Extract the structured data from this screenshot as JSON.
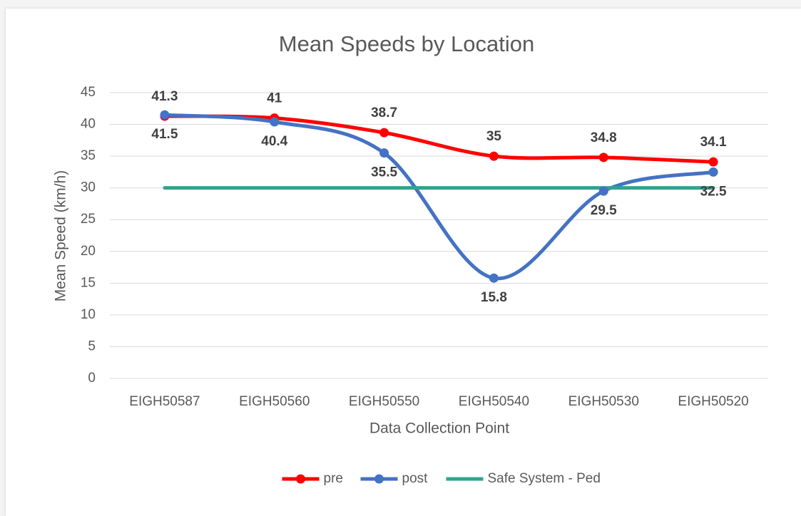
{
  "chart_data": {
    "type": "line",
    "title": "Mean Speeds by Location",
    "x_label": "Data Collection Point",
    "y_label": "Mean Speed (km/h)",
    "categories": [
      "EIGH50587",
      "EIGH50560",
      "EIGH50550",
      "EIGH50540",
      "EIGH50530",
      "EIGH50520"
    ],
    "series": [
      {
        "name": "pre",
        "color": "#ff0000",
        "values": [
          41.3,
          41,
          38.7,
          35,
          34.8,
          34.1
        ],
        "markers": true,
        "data_labels": "above"
      },
      {
        "name": "post",
        "color": "#4472c4",
        "values": [
          41.5,
          40.4,
          35.5,
          15.8,
          29.5,
          32.5
        ],
        "markers": true,
        "data_labels": "below"
      },
      {
        "name": "Safe System - Ped",
        "color": "#2ea58f",
        "values": [
          30,
          30,
          30,
          30,
          30,
          30
        ],
        "markers": false
      }
    ],
    "ylim": [
      0,
      45
    ],
    "yticks": [
      0,
      5,
      10,
      15,
      20,
      25,
      30,
      35,
      40,
      45
    ],
    "grid": true,
    "smooth": true,
    "legend": "bottom"
  }
}
